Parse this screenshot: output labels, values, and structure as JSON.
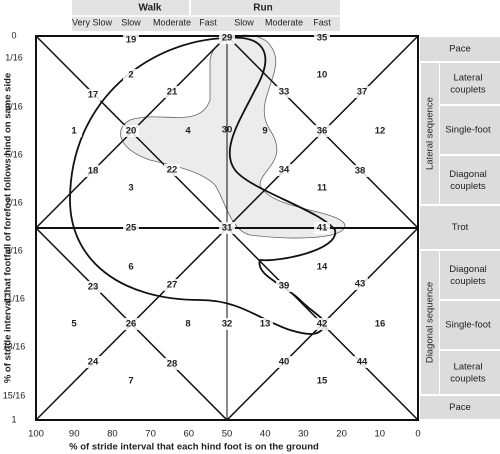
{
  "header": {
    "groups": [
      "Walk",
      "Run"
    ],
    "speeds": [
      "Very Slow",
      "Slow",
      "Moderate",
      "Fast",
      "Slow",
      "Moderate",
      "Fast"
    ]
  },
  "regions": [
    "19",
    "29",
    "35",
    "2",
    "21",
    "33",
    "10",
    "37",
    "17",
    "1",
    "20",
    "4",
    "30",
    "9",
    "36",
    "12",
    "18",
    "22",
    "34",
    "38",
    "3",
    "11",
    "25",
    "31",
    "41",
    "6",
    "14",
    "23",
    "27",
    "39",
    "43",
    "5",
    "26",
    "8",
    "32",
    "13",
    "42",
    "16",
    "24",
    "28",
    "40",
    "44",
    "7",
    "15"
  ],
  "right_panel": {
    "rows": [
      "Pace",
      "Lateral couplets",
      "Single-foot",
      "Diagonal couplets",
      "Trot",
      "Diagonal couplets",
      "Single-foot",
      "Lateral couplets",
      "Pace"
    ],
    "sequences": [
      "Lateral sequence",
      "Diagonal sequence"
    ]
  },
  "y_axis": {
    "label": "% of stride interval that footfall of forefoot follows hind on same side",
    "ticks": [
      "0",
      "1/16",
      "3/16",
      "5/16",
      "7/16",
      "9/16",
      "11/16",
      "13/16",
      "15/16",
      "1"
    ]
  },
  "x_axis": {
    "label": "% of stride interval that each hind foot is on the ground",
    "ticks": [
      "100",
      "90",
      "80",
      "70",
      "60",
      "50",
      "40",
      "30",
      "20",
      "10",
      "0"
    ]
  }
}
